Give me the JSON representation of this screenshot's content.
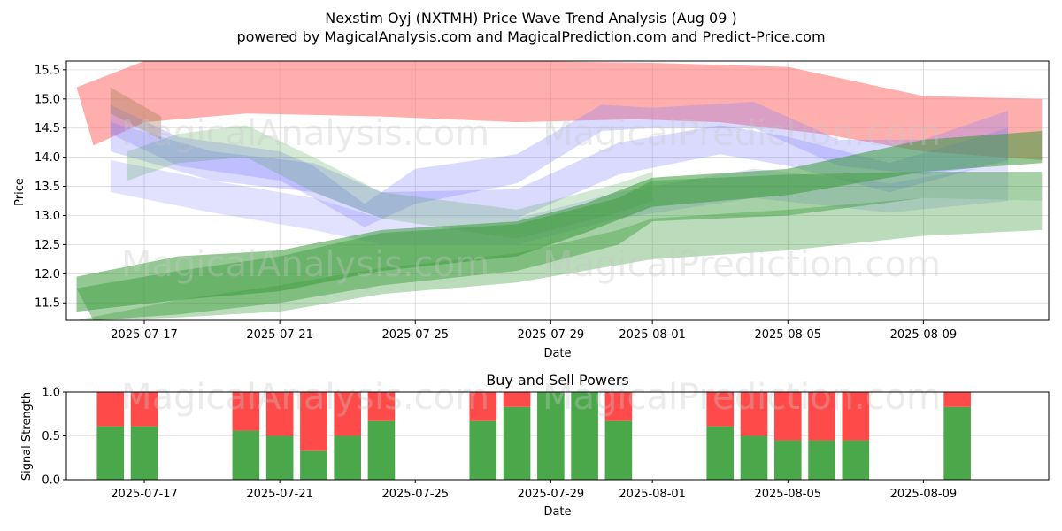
{
  "title_line1": "Nexstim Oyj (NXTMH) Price Wave Trend Analysis (Aug 09 )",
  "title_line2": "powered by MagicalAnalysis.com and MagicalPrediction.com and Predict-Price.com",
  "watermarks": [
    "MagicalAnalysis.com",
    "MagicalPrediction.com"
  ],
  "chart_data": [
    {
      "type": "area",
      "title": "",
      "xlabel": "Date",
      "ylabel": "Price",
      "ylim": [
        11.2,
        15.65
      ],
      "yticks": [
        11.5,
        12.0,
        12.5,
        13.0,
        13.5,
        14.0,
        14.5,
        15.0,
        15.5
      ],
      "xticks": [
        "2025-07-17",
        "2025-07-21",
        "2025-07-25",
        "2025-07-29",
        "2025-08-01",
        "2025-08-05",
        "2025-08-09"
      ],
      "xtick_days": [
        17,
        21,
        25,
        29,
        32,
        36,
        40
      ],
      "xlim_days": [
        14.7,
        43.7
      ],
      "grid": true,
      "colors": {
        "red": "#ff6b6b",
        "blue": "#7b7bff",
        "green": "#3a9a3a"
      },
      "series": [
        {
          "name": "red-band",
          "color": "red",
          "opacity": 0.55,
          "upper": [
            [
              15.0,
              15.2
            ],
            [
              17.0,
              15.65
            ],
            [
              21.0,
              15.65
            ],
            [
              28.0,
              15.65
            ],
            [
              32.0,
              15.62
            ],
            [
              36.0,
              15.55
            ],
            [
              38.0,
              15.3
            ],
            [
              40.0,
              15.05
            ],
            [
              43.5,
              15.0
            ]
          ],
          "lower": [
            [
              15.5,
              14.2
            ],
            [
              17.0,
              14.6
            ],
            [
              20.0,
              14.75
            ],
            [
              24.0,
              14.7
            ],
            [
              28.0,
              14.6
            ],
            [
              31.5,
              14.65
            ],
            [
              34.0,
              14.6
            ],
            [
              37.0,
              14.4
            ],
            [
              40.0,
              14.1
            ],
            [
              43.5,
              13.95
            ]
          ]
        },
        {
          "name": "blue-band-1",
          "color": "blue",
          "opacity": 0.28,
          "upper": [
            [
              16.0,
              14.9
            ],
            [
              18.0,
              14.35
            ],
            [
              21.0,
              14.1
            ],
            [
              22.0,
              13.85
            ],
            [
              23.5,
              13.2
            ],
            [
              25.0,
              13.8
            ],
            [
              28.0,
              14.05
            ],
            [
              30.5,
              14.9
            ],
            [
              32.0,
              14.85
            ],
            [
              35.0,
              14.95
            ],
            [
              37.5,
              14.3
            ],
            [
              40.0,
              14.3
            ],
            [
              42.5,
              14.8
            ]
          ],
          "lower": [
            [
              16.0,
              14.4
            ],
            [
              18.0,
              13.85
            ],
            [
              21.0,
              13.6
            ],
            [
              22.0,
              13.3
            ],
            [
              23.5,
              12.8
            ],
            [
              25.0,
              13.2
            ],
            [
              28.0,
              13.55
            ],
            [
              30.5,
              14.45
            ],
            [
              32.0,
              14.5
            ],
            [
              35.0,
              14.5
            ],
            [
              37.5,
              13.85
            ],
            [
              40.0,
              13.7
            ],
            [
              42.5,
              13.9
            ]
          ]
        },
        {
          "name": "blue-band-2",
          "color": "blue",
          "opacity": 0.28,
          "upper": [
            [
              16.0,
              14.6
            ],
            [
              19.0,
              14.1
            ],
            [
              22.0,
              13.9
            ],
            [
              24.0,
              13.4
            ],
            [
              28.0,
              13.45
            ],
            [
              31.0,
              14.25
            ],
            [
              34.0,
              14.55
            ],
            [
              36.0,
              14.35
            ],
            [
              39.0,
              13.9
            ],
            [
              42.5,
              14.5
            ]
          ],
          "lower": [
            [
              16.0,
              14.1
            ],
            [
              19.0,
              13.6
            ],
            [
              22.0,
              13.4
            ],
            [
              24.0,
              12.95
            ],
            [
              28.0,
              12.95
            ],
            [
              31.0,
              13.7
            ],
            [
              34.0,
              14.05
            ],
            [
              36.0,
              13.85
            ],
            [
              39.0,
              13.4
            ],
            [
              42.5,
              13.95
            ]
          ]
        },
        {
          "name": "blue-band-3",
          "color": "blue",
          "opacity": 0.22,
          "upper": [
            [
              16.0,
              13.95
            ],
            [
              19.0,
              13.6
            ],
            [
              22.0,
              13.3
            ],
            [
              24.0,
              12.95
            ],
            [
              28.0,
              12.95
            ],
            [
              31.0,
              13.4
            ],
            [
              35.0,
              13.8
            ],
            [
              39.0,
              13.55
            ],
            [
              42.5,
              13.9
            ]
          ],
          "lower": [
            [
              16.0,
              13.4
            ],
            [
              19.0,
              13.05
            ],
            [
              22.0,
              12.75
            ],
            [
              24.0,
              12.5
            ],
            [
              28.0,
              12.5
            ],
            [
              31.0,
              12.95
            ],
            [
              35.0,
              13.3
            ],
            [
              39.0,
              13.05
            ],
            [
              42.5,
              13.25
            ]
          ]
        },
        {
          "name": "tan-band",
          "color": "#9b7a50",
          "opacity": 0.35,
          "upper": [
            [
              16.0,
              15.2
            ],
            [
              17.5,
              14.7
            ]
          ],
          "lower": [
            [
              16.0,
              14.75
            ],
            [
              17.5,
              14.3
            ]
          ]
        },
        {
          "name": "green-band-1",
          "color": "green",
          "opacity": 0.55,
          "upper": [
            [
              15.0,
              11.95
            ],
            [
              18.0,
              12.3
            ],
            [
              21.0,
              12.4
            ],
            [
              24.0,
              12.75
            ],
            [
              28.0,
              12.9
            ],
            [
              30.0,
              13.2
            ],
            [
              32.0,
              13.65
            ],
            [
              36.0,
              13.8
            ],
            [
              40.0,
              14.3
            ],
            [
              43.5,
              14.45
            ]
          ],
          "lower": [
            [
              15.0,
              11.35
            ],
            [
              18.0,
              11.55
            ],
            [
              21.0,
              11.7
            ],
            [
              24.0,
              12.05
            ],
            [
              28.0,
              12.3
            ],
            [
              30.0,
              12.7
            ],
            [
              32.0,
              13.15
            ],
            [
              36.0,
              13.35
            ],
            [
              40.0,
              13.75
            ],
            [
              43.5,
              13.9
            ]
          ]
        },
        {
          "name": "green-band-2",
          "color": "green",
          "opacity": 0.45,
          "upper": [
            [
              15.0,
              11.75
            ],
            [
              18.0,
              12.05
            ],
            [
              21.0,
              12.3
            ],
            [
              24.0,
              12.7
            ],
            [
              28.0,
              12.85
            ],
            [
              31.0,
              13.3
            ],
            [
              32.0,
              13.6
            ],
            [
              36.0,
              13.7
            ],
            [
              40.0,
              13.75
            ],
            [
              43.5,
              13.75
            ]
          ],
          "lower": [
            [
              15.5,
              11.2
            ],
            [
              18.0,
              11.3
            ],
            [
              21.0,
              11.5
            ],
            [
              24.0,
              11.8
            ],
            [
              28.0,
              12.05
            ],
            [
              31.0,
              12.5
            ],
            [
              32.0,
              12.9
            ],
            [
              36.0,
              13.0
            ],
            [
              40.0,
              13.3
            ],
            [
              43.5,
              13.25
            ]
          ]
        },
        {
          "name": "green-band-3",
          "color": "green",
          "opacity": 0.35,
          "upper": [
            [
              15.0,
              11.2
            ],
            [
              18.0,
              11.55
            ],
            [
              21.0,
              11.8
            ],
            [
              24.0,
              12.1
            ],
            [
              28.0,
              12.35
            ],
            [
              31.0,
              12.75
            ],
            [
              32.0,
              12.95
            ],
            [
              36.0,
              13.1
            ],
            [
              40.0,
              13.3
            ],
            [
              43.5,
              13.25
            ]
          ],
          "lower": [
            [
              15.5,
              11.2
            ],
            [
              18.0,
              11.25
            ],
            [
              21.0,
              11.35
            ],
            [
              24.0,
              11.65
            ],
            [
              28.0,
              11.85
            ],
            [
              31.0,
              12.15
            ],
            [
              32.0,
              12.25
            ],
            [
              36.0,
              12.4
            ],
            [
              40.0,
              12.65
            ],
            [
              43.5,
              12.75
            ]
          ]
        },
        {
          "name": "green-band-4",
          "color": "green",
          "opacity": 0.22,
          "upper": [
            [
              16.5,
              14.1
            ],
            [
              18.0,
              14.4
            ],
            [
              20.0,
              14.55
            ],
            [
              22.0,
              14.0
            ],
            [
              24.0,
              13.4
            ],
            [
              28.0,
              13.1
            ],
            [
              31.0,
              13.55
            ],
            [
              32.0,
              13.75
            ]
          ],
          "lower": [
            [
              16.5,
              13.6
            ],
            [
              18.0,
              13.9
            ],
            [
              20.0,
              14.0
            ],
            [
              22.0,
              13.4
            ],
            [
              24.0,
              12.95
            ],
            [
              28.0,
              12.6
            ],
            [
              31.0,
              13.05
            ],
            [
              32.0,
              13.25
            ]
          ]
        }
      ]
    },
    {
      "type": "bar",
      "title": "Buy and Sell Powers",
      "xlabel": "Date",
      "ylabel": "Signal Strength",
      "ylim": [
        0.0,
        1.0
      ],
      "yticks": [
        "0.0",
        "0.5",
        "1.0"
      ],
      "xticks": [
        "2025-07-17",
        "2025-07-21",
        "2025-07-25",
        "2025-07-29",
        "2025-08-01",
        "2025-08-05",
        "2025-08-09"
      ],
      "xtick_days": [
        17,
        21,
        25,
        29,
        32,
        36,
        40
      ],
      "xlim_days": [
        14.7,
        43.7
      ],
      "colors": {
        "buy": "#4aa84a",
        "sell": "#ff4a4a"
      },
      "bar_days": [
        16,
        17,
        20,
        21,
        22,
        23,
        24,
        27,
        28,
        29,
        30,
        31,
        34,
        35,
        36,
        37,
        38,
        41
      ],
      "buy": [
        0.61,
        0.61,
        0.56,
        0.5,
        0.33,
        0.5,
        0.67,
        0.67,
        0.83,
        1.0,
        1.0,
        0.67,
        0.61,
        0.5,
        0.45,
        0.45,
        0.45,
        0.83
      ],
      "sell": [
        0.39,
        0.39,
        0.44,
        0.5,
        0.67,
        0.5,
        0.33,
        0.33,
        0.17,
        0.0,
        0.0,
        0.33,
        0.39,
        0.5,
        0.55,
        0.55,
        0.55,
        0.17
      ]
    }
  ]
}
